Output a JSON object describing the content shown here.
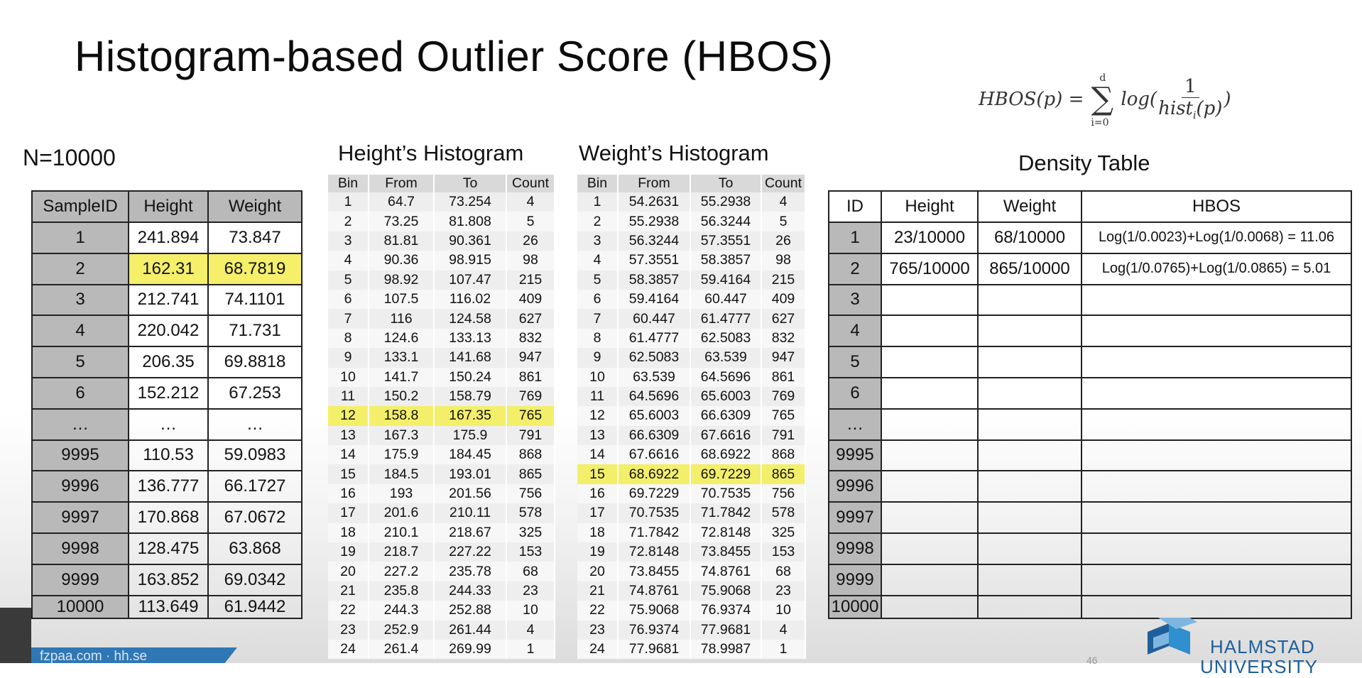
{
  "slide": {
    "title": "Histogram-based Outlier Score (HBOS)",
    "n_label": "N=10000",
    "formula": {
      "lhs": "HBOS(p) = ",
      "sum_top": "d",
      "sum_bottom": "i=0",
      "log": "log(",
      "numerator": "1",
      "denominator": "hist",
      "denominator_sub": "i",
      "denominator_arg": "(p)",
      "close": ")"
    }
  },
  "sample_table": {
    "headers": [
      "SampleID",
      "Height",
      "Weight"
    ],
    "rows": [
      [
        "1",
        "241.894",
        "73.847"
      ],
      [
        "2",
        "162.31",
        "68.7819"
      ],
      [
        "3",
        "212.741",
        "74.1101"
      ],
      [
        "4",
        "220.042",
        "71.731"
      ],
      [
        "5",
        "206.35",
        "69.8818"
      ],
      [
        "6",
        "152.212",
        "67.253"
      ],
      [
        "…",
        "…",
        "…"
      ],
      [
        "9995",
        "110.53",
        "59.0983"
      ],
      [
        "9996",
        "136.777",
        "66.1727"
      ],
      [
        "9997",
        "170.868",
        "67.0672"
      ],
      [
        "9998",
        "128.475",
        "63.868"
      ],
      [
        "9999",
        "163.852",
        "69.0342"
      ],
      [
        "10000",
        "113.649",
        "61.9442"
      ]
    ]
  },
  "height_histogram": {
    "title": "Height’s Histogram",
    "headers": [
      "Bin",
      "From",
      "To",
      "Count"
    ],
    "rows": [
      [
        "1",
        "64.7",
        "73.254",
        "4"
      ],
      [
        "2",
        "73.25",
        "81.808",
        "5"
      ],
      [
        "3",
        "81.81",
        "90.361",
        "26"
      ],
      [
        "4",
        "90.36",
        "98.915",
        "98"
      ],
      [
        "5",
        "98.92",
        "107.47",
        "215"
      ],
      [
        "6",
        "107.5",
        "116.02",
        "409"
      ],
      [
        "7",
        "116",
        "124.58",
        "627"
      ],
      [
        "8",
        "124.6",
        "133.13",
        "832"
      ],
      [
        "9",
        "133.1",
        "141.68",
        "947"
      ],
      [
        "10",
        "141.7",
        "150.24",
        "861"
      ],
      [
        "11",
        "150.2",
        "158.79",
        "769"
      ],
      [
        "12",
        "158.8",
        "167.35",
        "765"
      ],
      [
        "13",
        "167.3",
        "175.9",
        "791"
      ],
      [
        "14",
        "175.9",
        "184.45",
        "868"
      ],
      [
        "15",
        "184.5",
        "193.01",
        "865"
      ],
      [
        "16",
        "193",
        "201.56",
        "756"
      ],
      [
        "17",
        "201.6",
        "210.11",
        "578"
      ],
      [
        "18",
        "210.1",
        "218.67",
        "325"
      ],
      [
        "19",
        "218.7",
        "227.22",
        "153"
      ],
      [
        "20",
        "227.2",
        "235.78",
        "68"
      ],
      [
        "21",
        "235.8",
        "244.33",
        "23"
      ],
      [
        "22",
        "244.3",
        "252.88",
        "10"
      ],
      [
        "23",
        "252.9",
        "261.44",
        "4"
      ],
      [
        "24",
        "261.4",
        "269.99",
        "1"
      ]
    ],
    "highlight_bin": "12"
  },
  "weight_histogram": {
    "title": "Weight’s Histogram",
    "headers": [
      "Bin",
      "From",
      "To",
      "Count"
    ],
    "rows": [
      [
        "1",
        "54.2631",
        "55.2938",
        "4"
      ],
      [
        "2",
        "55.2938",
        "56.3244",
        "5"
      ],
      [
        "3",
        "56.3244",
        "57.3551",
        "26"
      ],
      [
        "4",
        "57.3551",
        "58.3857",
        "98"
      ],
      [
        "5",
        "58.3857",
        "59.4164",
        "215"
      ],
      [
        "6",
        "59.4164",
        "60.447",
        "409"
      ],
      [
        "7",
        "60.447",
        "61.4777",
        "627"
      ],
      [
        "8",
        "61.4777",
        "62.5083",
        "832"
      ],
      [
        "9",
        "62.5083",
        "63.539",
        "947"
      ],
      [
        "10",
        "63.539",
        "64.5696",
        "861"
      ],
      [
        "11",
        "64.5696",
        "65.6003",
        "769"
      ],
      [
        "12",
        "65.6003",
        "66.6309",
        "765"
      ],
      [
        "13",
        "66.6309",
        "67.6616",
        "791"
      ],
      [
        "14",
        "67.6616",
        "68.6922",
        "868"
      ],
      [
        "15",
        "68.6922",
        "69.7229",
        "865"
      ],
      [
        "16",
        "69.7229",
        "70.7535",
        "756"
      ],
      [
        "17",
        "70.7535",
        "71.7842",
        "578"
      ],
      [
        "18",
        "71.7842",
        "72.8148",
        "325"
      ],
      [
        "19",
        "72.8148",
        "73.8455",
        "153"
      ],
      [
        "20",
        "73.8455",
        "74.8761",
        "68"
      ],
      [
        "21",
        "74.8761",
        "75.9068",
        "23"
      ],
      [
        "22",
        "75.9068",
        "76.9374",
        "10"
      ],
      [
        "23",
        "76.9374",
        "77.9681",
        "4"
      ],
      [
        "24",
        "77.9681",
        "78.9987",
        "1"
      ]
    ],
    "highlight_bin": "15"
  },
  "density_table": {
    "title": "Density Table",
    "headers": [
      "ID",
      "Height",
      "Weight",
      "HBOS"
    ],
    "rows": [
      [
        "1",
        "23/10000",
        "68/10000",
        "Log(1/0.0023)+Log(1/0.0068) = 11.06"
      ],
      [
        "2",
        "765/10000",
        "865/10000",
        "Log(1/0.0765)+Log(1/0.0865) = 5.01"
      ],
      [
        "3",
        "",
        "",
        ""
      ],
      [
        "4",
        "",
        "",
        ""
      ],
      [
        "5",
        "",
        "",
        ""
      ],
      [
        "6",
        "",
        "",
        ""
      ],
      [
        "…",
        "",
        "",
        ""
      ],
      [
        "9995",
        "",
        "",
        ""
      ],
      [
        "9996",
        "",
        "",
        ""
      ],
      [
        "9997",
        "",
        "",
        ""
      ],
      [
        "9998",
        "",
        "",
        ""
      ],
      [
        "9999",
        "",
        "",
        ""
      ],
      [
        "10000",
        "",
        "",
        ""
      ]
    ]
  },
  "footer": {
    "banner_text": "fzpaa.com · hh.se",
    "page_number": "46",
    "logo_line1": "HALMSTAD",
    "logo_line2": "UNIVERSITY",
    "logo_colors": [
      "#1f5f9a",
      "#2f8fcf",
      "#7fb6e0"
    ]
  },
  "colors": {
    "highlight": "#f5ef6a",
    "id_cell": "#b9b9b9",
    "hist_header": "#d9d9d9"
  }
}
